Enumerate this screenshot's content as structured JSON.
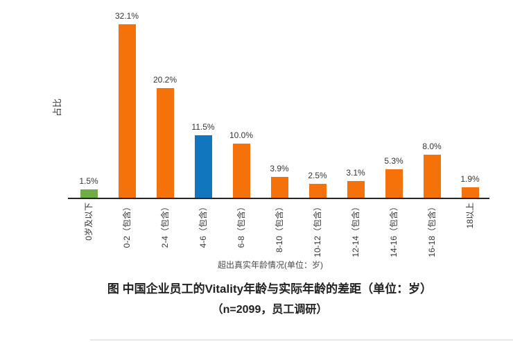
{
  "colors": {
    "orange": "#F5710A",
    "blue": "#1176BD",
    "green": "#70AD47",
    "axis": "#262626",
    "text": "#353535"
  },
  "chart_data": {
    "type": "bar",
    "title": "图 中国企业员工的Vitality年龄与实际年龄的差距（单位：岁）",
    "subtitle": "（n=2099，员工调研）",
    "xlabel": "超出真实年龄情况(单位：岁)",
    "ylabel": "占比",
    "categories": [
      "0岁及以下",
      "0-2（包含）",
      "2-4（包含）",
      "4-6（包含）",
      "6-8（包含）",
      "8-10（包含）",
      "10-12（包含）",
      "12-14（包含）",
      "14-16（包含）",
      "16-18（包含）",
      "18以上"
    ],
    "values": [
      1.5,
      32.1,
      20.2,
      11.5,
      10.0,
      3.9,
      2.5,
      3.1,
      5.3,
      8.0,
      1.9
    ],
    "value_labels": [
      "1.5%",
      "32.1%",
      "20.2%",
      "11.5%",
      "10.0%",
      "3.9%",
      "2.5%",
      "3.1%",
      "5.3%",
      "8.0%",
      "1.9%"
    ],
    "bar_color_roles": [
      "green",
      "orange",
      "orange",
      "blue",
      "orange",
      "orange",
      "orange",
      "orange",
      "orange",
      "orange",
      "orange"
    ],
    "ylim": [
      0,
      35
    ],
    "grid": false,
    "legend": null,
    "data_labels": true
  }
}
